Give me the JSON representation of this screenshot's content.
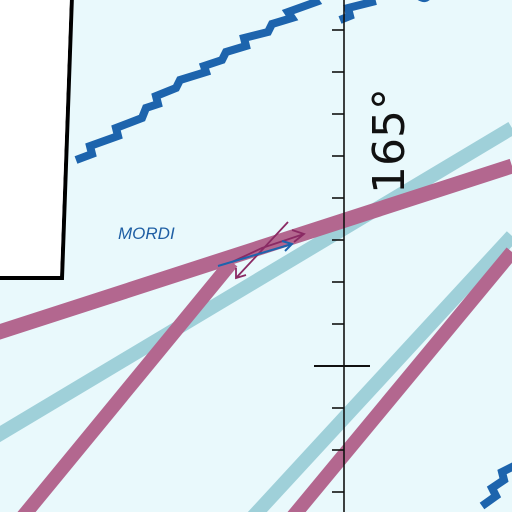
{
  "chart": {
    "fix": {
      "name": "MORDI"
    },
    "meridian": {
      "label": "165°"
    },
    "colors": {
      "background": "#e9f9fc",
      "boundary_blue": "#1d64ad",
      "route_magenta": "#b3678f",
      "route_teal": "#9fd0d9",
      "inset_border": "#000000",
      "inset_fill": "#ffffff",
      "fix_label": "#1f5fa4"
    },
    "icons": [
      "fix-arrow-magenta-icon",
      "fix-arrow-blue-icon"
    ]
  }
}
